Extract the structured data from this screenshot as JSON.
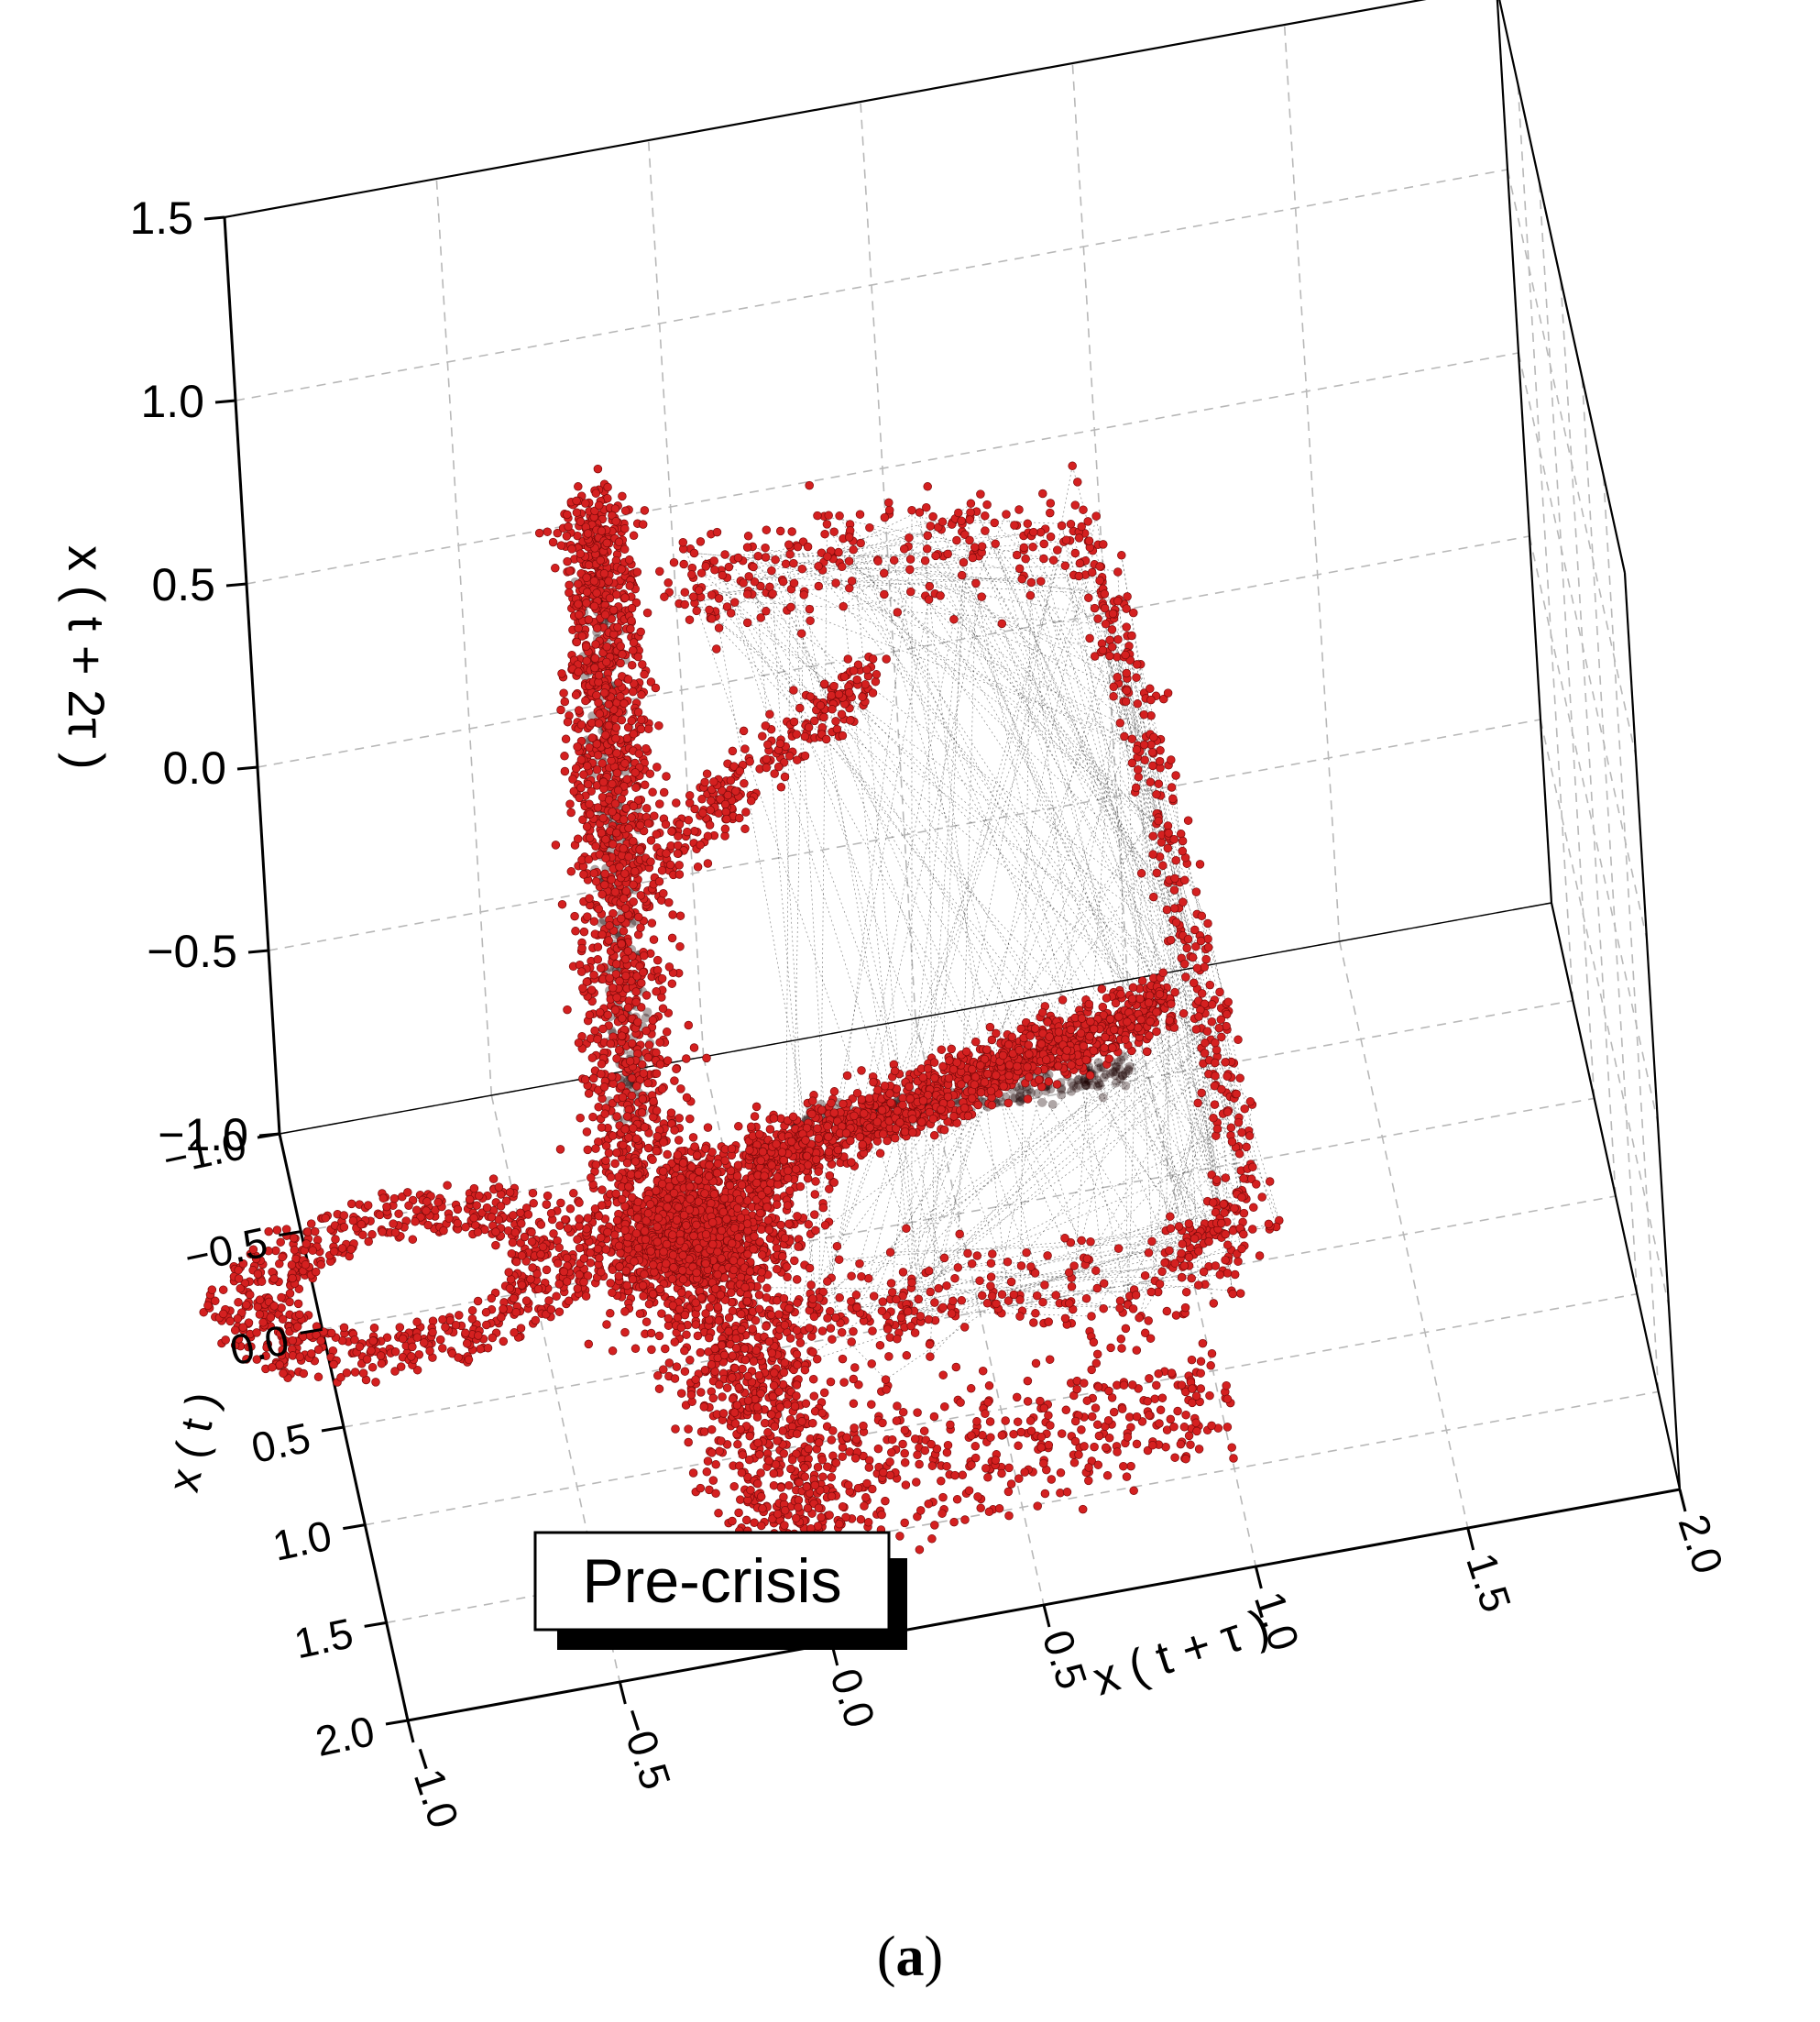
{
  "chart_data": {
    "type": "scatter",
    "projection": "3d",
    "title": "",
    "marker_color": "#d42020",
    "line_color": "#2a2a2a",
    "box_color": "#000000",
    "grid": true,
    "axes": {
      "x": {
        "label": "x ( t + τ )",
        "range": [
          -1.0,
          2.0
        ],
        "ticks": [
          "−1.0",
          "−0.5",
          "0.0",
          "0.5",
          "1.0",
          "1.5",
          "2.0"
        ],
        "tick_values": [
          -1.0,
          -0.5,
          0.0,
          0.5,
          1.0,
          1.5,
          2.0
        ]
      },
      "y": {
        "label": "x ( t )",
        "range": [
          -1.0,
          2.0
        ],
        "ticks": [
          "−1.0",
          "−0.5",
          "0.0",
          "0.5",
          "1.0",
          "1.5",
          "2.0"
        ],
        "tick_values": [
          -1.0,
          -0.5,
          0.0,
          0.5,
          1.0,
          1.5,
          2.0
        ]
      },
      "z": {
        "label": "x ( t + 2τ )",
        "range": [
          -1.0,
          1.5
        ],
        "ticks": [
          "−1.0",
          "−0.5",
          "0.0",
          "0.5",
          "1.0",
          "1.5"
        ],
        "tick_values": [
          -1.0,
          -0.5,
          0.0,
          0.5,
          1.0,
          1.5
        ]
      }
    },
    "annotation": "Pre-crisis",
    "attractor": {
      "dense_cluster": {
        "x": 0.0,
        "y": 0.5,
        "z": -0.6
      },
      "vertical_wing": {
        "x_range": [
          -0.5,
          0.0
        ],
        "z_range": [
          -0.6,
          1.3
        ]
      },
      "horizontal_wing": {
        "x_range": [
          0.0,
          1.0
        ],
        "z_range": [
          -0.6,
          -0.25
        ]
      },
      "left_loop_center": {
        "x": -1.0,
        "z": -0.8
      },
      "outer_loop": {
        "x_range": [
          0.3,
          1.2
        ],
        "z_range": [
          -0.5,
          1.3
        ]
      }
    }
  },
  "caption": "(a)"
}
